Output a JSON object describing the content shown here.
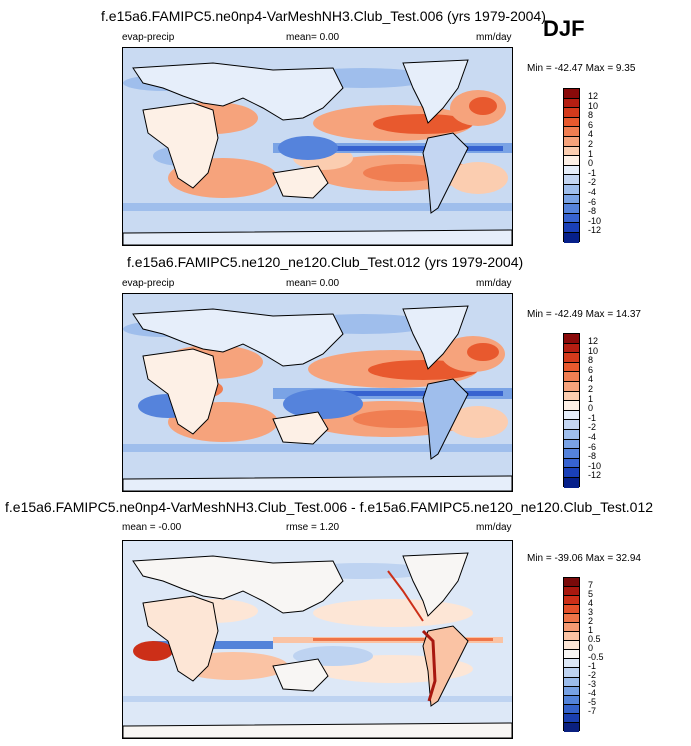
{
  "season": "DJF",
  "colors": {
    "levels_full": [
      "#8a0a0a",
      "#b41e12",
      "#d43a1c",
      "#e8592e",
      "#f07e52",
      "#f6a37c",
      "#fbcdb0",
      "#fdf0e6",
      "#e6eefa",
      "#c4d6f2",
      "#9fbeec",
      "#7aa3e5",
      "#5583dc",
      "#3763d0",
      "#1a40b8",
      "#06208a"
    ],
    "levels_diff": [
      "#7a0a0a",
      "#a8180f",
      "#cc2f18",
      "#e4502a",
      "#ef7448",
      "#f59a72",
      "#fac3a4",
      "#fde6d6",
      "#f8f6f4",
      "#dde8f7",
      "#bed3f1",
      "#9bbceb",
      "#77a1e3",
      "#5383d9",
      "#3462ca",
      "#1a3fb0",
      "#0a2080"
    ],
    "ocean": "#c9daf2",
    "land": "#e8eef7"
  },
  "panels": [
    {
      "title": "f.e15a6.FAMIPC5.ne0np4-VarMeshNH3.Club_Test.006 (yrs 1979-2004)",
      "left_label": "evap-precip",
      "center_label": "mean=   0.00",
      "units": "mm/day",
      "minmax": "Min = -42.47 Max =   9.35",
      "colorbar_ticks": [
        "12",
        "10",
        "8",
        "6",
        "4",
        "2",
        "1",
        "0",
        "-1",
        "-2",
        "-4",
        "-6",
        "-8",
        "-10",
        "-12"
      ]
    },
    {
      "title": "f.e15a6.FAMIPC5.ne120_ne120.Club_Test.012 (yrs 1979-2004)",
      "left_label": "evap-precip",
      "center_label": "mean=   0.00",
      "units": "mm/day",
      "minmax": "Min = -42.49 Max =  14.37",
      "colorbar_ticks": [
        "12",
        "10",
        "8",
        "6",
        "4",
        "2",
        "1",
        "0",
        "-1",
        "-2",
        "-4",
        "-6",
        "-8",
        "-10",
        "-12"
      ]
    },
    {
      "title": "f.e15a6.FAMIPC5.ne0np4-VarMeshNH3.Club_Test.006 - f.e15a6.FAMIPC5.ne120_ne120.Club_Test.012",
      "left_label": "mean = -0.00",
      "center_label": "rmse =   1.20",
      "units": "mm/day",
      "minmax": "Min = -39.06 Max =  32.94",
      "colorbar_ticks": [
        "7",
        "5",
        "4",
        "3",
        "2",
        "1",
        "0.5",
        "0",
        "-0.5",
        "-1",
        "-2",
        "-3",
        "-4",
        "-5",
        "-7"
      ]
    }
  ]
}
